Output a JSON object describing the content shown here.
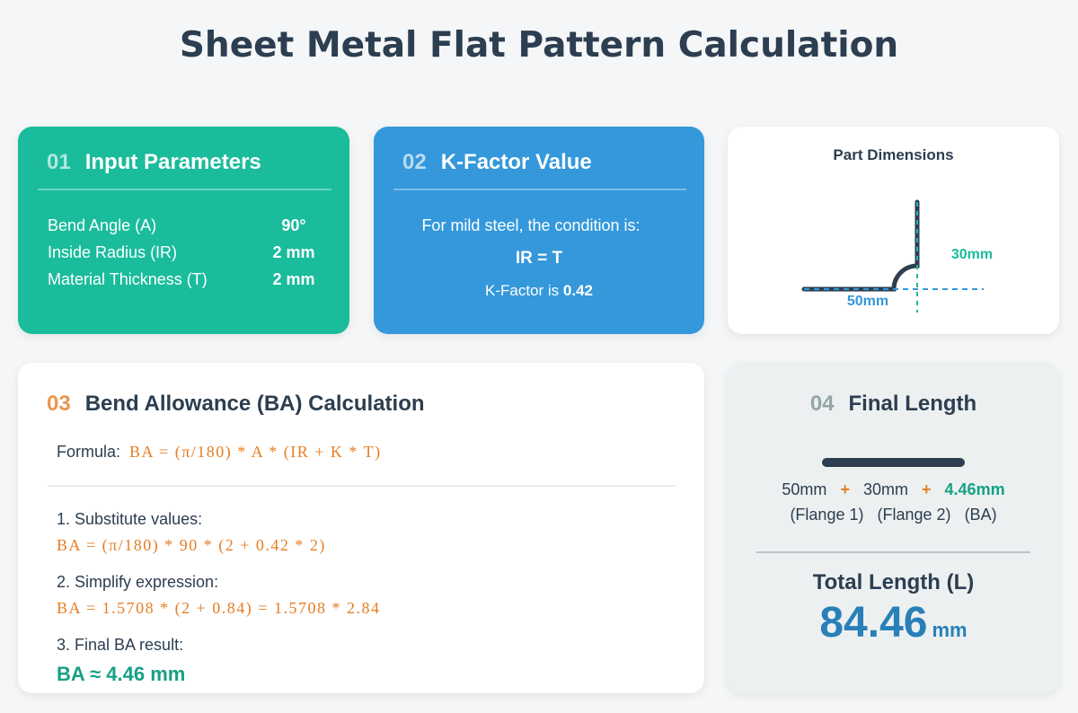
{
  "title": "Sheet Metal Flat Pattern Calculation",
  "colors": {
    "green": "#1abc9c",
    "blue": "#3498db",
    "orange": "#e67e22",
    "teal": "#16a085",
    "dark": "#2c3e50"
  },
  "input": {
    "num": "01",
    "title": "Input Parameters",
    "rows": [
      {
        "label": "Bend Angle (A)",
        "value": "90°"
      },
      {
        "label": "Inside Radius (IR)",
        "value": "2 mm"
      },
      {
        "label": "Material Thickness (T)",
        "value": "2 mm"
      }
    ]
  },
  "kfactor": {
    "num": "02",
    "title": "K-Factor Value",
    "condition": "For mild steel, the condition is:",
    "equation": "IR = T",
    "result_prefix": "K-Factor is",
    "result_value": "0.42"
  },
  "dimensions": {
    "title": "Part Dimensions",
    "flange1": "50mm",
    "flange2": "30mm"
  },
  "ba": {
    "num": "03",
    "title": "Bend Allowance (BA) Calculation",
    "formula_label": "Formula:",
    "formula": "BA = (π/180) * A * (IR + K * T)",
    "steps": [
      {
        "label": "1. Substitute values:",
        "expr": "BA = (π/180) * 90 * (2 + 0.42 * 2)"
      },
      {
        "label": "2. Simplify expression:",
        "expr": "BA = 1.5708 * (2 + 0.84) = 1.5708 * 2.84"
      },
      {
        "label": "3. Final BA result:",
        "expr": "BA ≈ 4.46 mm"
      }
    ]
  },
  "final": {
    "num": "04",
    "title": "Final Length",
    "parts": [
      {
        "value": "50mm",
        "label": "(Flange 1)"
      },
      {
        "value": "30mm",
        "label": "(Flange 2)"
      },
      {
        "value": "4.46mm",
        "label": "(BA)"
      }
    ],
    "plus": "+",
    "total_label": "Total Length (L)",
    "total_value": "84.46",
    "total_unit": "mm"
  }
}
